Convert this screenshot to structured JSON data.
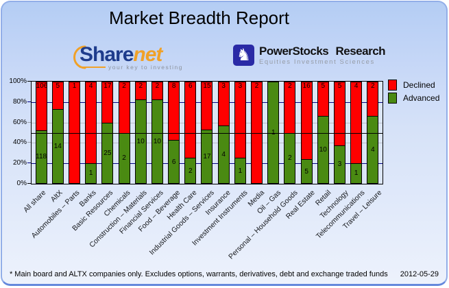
{
  "title": "Market Breadth Report",
  "logos": {
    "sharenet": {
      "name_part1": "Share",
      "name_part2": "net",
      "tagline": "your key to investing"
    },
    "powerstocks": {
      "name": "PowerStocks Research",
      "tagline": "Equities Investment Sciences",
      "icon": "knight-icon",
      "icon_glyph": "♞"
    }
  },
  "legend": [
    {
      "label": "Declined",
      "color": "#ff0000"
    },
    {
      "label": "Advanced",
      "color": "#4a8a12"
    }
  ],
  "chart_data": {
    "type": "bar",
    "stacked": true,
    "normalized_to_percent": true,
    "categories": [
      "All share",
      "AltX",
      "Automobiles – Parts",
      "Banks",
      "Basic Resources",
      "Chemicals",
      "Construction – Materials",
      "Financial Services",
      "Food – Beverage",
      "Health Care",
      "Industrial Goods – Services",
      "Insurance",
      "Investment Instruments",
      "Media",
      "Oil – Gas",
      "Personal – Household Goods",
      "Real Estate",
      "Retail",
      "Technology",
      "Telecommunications",
      "Travel – Leisure"
    ],
    "series": [
      {
        "name": "Declined",
        "color": "#ff0000",
        "values": [
          106,
          5,
          1,
          4,
          17,
          2,
          2,
          2,
          8,
          6,
          15,
          3,
          3,
          2,
          0,
          2,
          16,
          5,
          5,
          4,
          2
        ]
      },
      {
        "name": "Advanced",
        "color": "#4a8a12",
        "values": [
          118,
          14,
          0,
          1,
          25,
          2,
          10,
          10,
          6,
          2,
          17,
          4,
          1,
          0,
          1,
          2,
          5,
          10,
          3,
          1,
          4
        ]
      }
    ],
    "ylabel": "",
    "xlabel": "",
    "ylim": [
      0,
      100
    ],
    "y_ticks": [
      "0%",
      "20%",
      "40%",
      "60%",
      "80%",
      "100%"
    ],
    "reference_line_percent": 50,
    "grid": "horizontal",
    "legend_position": "top-right"
  },
  "footer": {
    "note": "* Main board and ALTX companies only. Excludes options, warrants, derivatives, debt and exchange traded funds",
    "date": "2012-05-29"
  }
}
